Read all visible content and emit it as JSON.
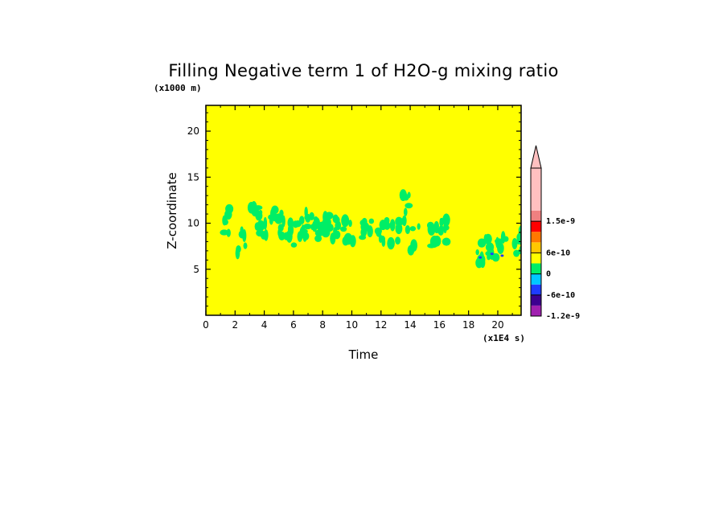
{
  "chart_data": {
    "type": "heatmap",
    "title": "Filling Negative term 1 of H2O-g mixing ratio",
    "xlabel": "Time",
    "ylabel": "Z-coordinate",
    "x_units": "(x1E4 s)",
    "y_units": "(x1000 m)",
    "xlim": [
      0,
      21.6
    ],
    "ylim": [
      0,
      22.8
    ],
    "xticks": [
      0,
      2,
      4,
      6,
      8,
      10,
      12,
      14,
      16,
      18,
      20
    ],
    "yticks": [
      5,
      10,
      15,
      20
    ],
    "background_value": "0 to 3e-10",
    "colorbar": {
      "levels": [
        {
          "color": "#a020b0",
          "label": "-1.2e-9"
        },
        {
          "color": "#3c0090",
          "label": ""
        },
        {
          "color": "#1e3cff",
          "label": "-6e-10"
        },
        {
          "color": "#00c8ff",
          "label": ""
        },
        {
          "color": "#00ee66",
          "label": "0"
        },
        {
          "color": "#ffff00",
          "label": ""
        },
        {
          "color": "#ffc800",
          "label": "6e-10"
        },
        {
          "color": "#ff7800",
          "label": ""
        },
        {
          "color": "#ff0000",
          "label": ""
        },
        {
          "color": "#f08080",
          "label": "1.5e-9"
        },
        {
          "color": "#ffc0c0",
          "label": ""
        }
      ],
      "extend": "max"
    },
    "features": [
      {
        "x": 1.6,
        "z": 10.3,
        "value": "negative",
        "color": "green"
      },
      {
        "x": 2.5,
        "z": 8.0,
        "value": "negative",
        "color": "green"
      },
      {
        "x": 3.4,
        "z": 11.0,
        "value": "negative",
        "color": "green"
      },
      {
        "x": 4.0,
        "z": 9.8,
        "value": "negative",
        "color": "green"
      },
      {
        "x": 4.8,
        "z": 10.0,
        "value": "negative",
        "color": "green"
      },
      {
        "x": 5.5,
        "z": 9.8,
        "value": "negative",
        "color": "green"
      },
      {
        "x": 6.4,
        "z": 9.0,
        "value": "negative",
        "color": "green"
      },
      {
        "x": 7.0,
        "z": 9.8,
        "value": "negative",
        "color": "green"
      },
      {
        "x": 7.6,
        "z": 9.2,
        "value": "negative",
        "color": "green"
      },
      {
        "x": 8.5,
        "z": 9.6,
        "value": "negative",
        "color": "green"
      },
      {
        "x": 9.2,
        "z": 9.0,
        "value": "negative",
        "color": "green"
      },
      {
        "x": 9.8,
        "z": 8.8,
        "value": "negative",
        "color": "green"
      },
      {
        "x": 11.0,
        "z": 9.0,
        "value": "negative",
        "color": "green"
      },
      {
        "x": 12.2,
        "z": 9.0,
        "value": "negative",
        "color": "green"
      },
      {
        "x": 13.0,
        "z": 9.2,
        "value": "negative",
        "color": "green"
      },
      {
        "x": 13.8,
        "z": 11.6,
        "value": "negative",
        "color": "green"
      },
      {
        "x": 14.2,
        "z": 8.2,
        "value": "negative",
        "color": "green"
      },
      {
        "x": 15.6,
        "z": 8.8,
        "value": "negative",
        "color": "green"
      },
      {
        "x": 16.4,
        "z": 9.0,
        "value": "negative",
        "color": "green"
      },
      {
        "x": 18.8,
        "z": 6.8,
        "value": "negative",
        "color": "green"
      },
      {
        "x": 19.6,
        "z": 7.2,
        "value": "negative",
        "color": "green"
      },
      {
        "x": 20.3,
        "z": 7.0,
        "value": "negative",
        "color": "green"
      },
      {
        "x": 21.4,
        "z": 7.8,
        "value": "negative",
        "color": "green"
      }
    ]
  }
}
